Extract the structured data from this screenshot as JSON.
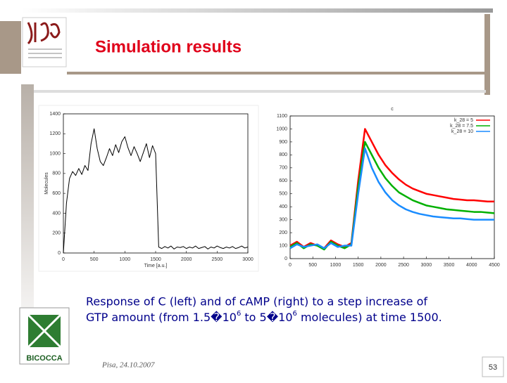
{
  "header": {
    "title": "Simulation results"
  },
  "logos": {
    "university": "BICOCCA"
  },
  "caption": {
    "line1": "Response of C (left) and of cAMP (right) to a step increase of",
    "line2": [
      "GTP amount (from 1.5�10",
      "6",
      " to 5�10",
      "6",
      " molecules) at time 1500."
    ]
  },
  "footer": {
    "date": "Pisa, 24.10.2007",
    "page": "53"
  },
  "chart_data": [
    {
      "type": "line",
      "xlabel": "Time [a.u.]",
      "ylabel": "Molecules",
      "x": [
        0,
        50,
        100,
        150,
        200,
        250,
        300,
        350,
        400,
        450,
        500,
        550,
        600,
        650,
        700,
        750,
        800,
        850,
        900,
        950,
        1000,
        1050,
        1100,
        1150,
        1200,
        1250,
        1300,
        1350,
        1400,
        1450,
        1500,
        1550,
        1600,
        1650,
        1700,
        1750,
        1800,
        1850,
        1900,
        1950,
        2000,
        2050,
        2100,
        2150,
        2200,
        2250,
        2300,
        2350,
        2400,
        2450,
        2500,
        2550,
        2600,
        2650,
        2700,
        2750,
        2800,
        2850,
        2900,
        2950,
        3000
      ],
      "series": [
        {
          "name": null,
          "color": "#000000",
          "values": [
            0,
            500,
            750,
            820,
            780,
            850,
            790,
            880,
            830,
            1100,
            1250,
            1050,
            920,
            880,
            960,
            1050,
            980,
            1090,
            1010,
            1120,
            1170,
            1060,
            980,
            1070,
            1000,
            920,
            1010,
            1100,
            960,
            1080,
            1000,
            60,
            45,
            65,
            50,
            70,
            40,
            60,
            55,
            65,
            45,
            60,
            50,
            70,
            45,
            55,
            65,
            40,
            60,
            50,
            70,
            55,
            45,
            60,
            50,
            65,
            45,
            55,
            70,
            50,
            60
          ]
        }
      ],
      "xlim": [
        0,
        3000
      ],
      "xticks": [
        0,
        500,
        1000,
        1500,
        2000,
        2500,
        3000
      ],
      "ylim": [
        0,
        1400
      ],
      "yticks": [
        0,
        200,
        400,
        600,
        800,
        1000,
        1200,
        1400
      ]
    },
    {
      "type": "line",
      "title": "c",
      "legend": "top-right",
      "x": [
        0,
        150,
        300,
        450,
        600,
        750,
        900,
        1050,
        1200,
        1350,
        1500,
        1650,
        1800,
        1950,
        2100,
        2250,
        2400,
        2550,
        2700,
        2850,
        3000,
        3150,
        3300,
        3450,
        3600,
        3750,
        3900,
        4050,
        4200,
        4350,
        4500
      ],
      "series": [
        {
          "name": "k_28 = 5",
          "color": "#ff0000",
          "values": [
            100,
            130,
            90,
            120,
            100,
            80,
            140,
            110,
            90,
            120,
            600,
            1000,
            900,
            800,
            720,
            660,
            610,
            570,
            540,
            520,
            500,
            490,
            480,
            470,
            460,
            455,
            450,
            450,
            445,
            440,
            440
          ]
        },
        {
          "name": "k_28 = 7.5",
          "color": "#00b000",
          "values": [
            90,
            120,
            80,
            110,
            100,
            70,
            130,
            100,
            80,
            110,
            550,
            900,
            800,
            700,
            620,
            560,
            510,
            480,
            450,
            430,
            410,
            400,
            390,
            380,
            375,
            370,
            365,
            360,
            360,
            355,
            350
          ]
        },
        {
          "name": "k_28 = 10",
          "color": "#1a8cff",
          "values": [
            80,
            110,
            90,
            100,
            110,
            80,
            120,
            90,
            100,
            100,
            500,
            850,
            700,
            590,
            510,
            450,
            410,
            380,
            360,
            345,
            335,
            325,
            320,
            315,
            310,
            310,
            305,
            300,
            300,
            300,
            300
          ]
        }
      ],
      "xlim": [
        0,
        4500
      ],
      "xticks": [
        0,
        500,
        1000,
        1500,
        2000,
        2500,
        3000,
        3500,
        4000,
        4500
      ],
      "ylim": [
        0,
        1100
      ],
      "yticks": [
        0,
        100,
        200,
        300,
        400,
        500,
        600,
        700,
        800,
        900,
        1000,
        1100
      ]
    }
  ]
}
